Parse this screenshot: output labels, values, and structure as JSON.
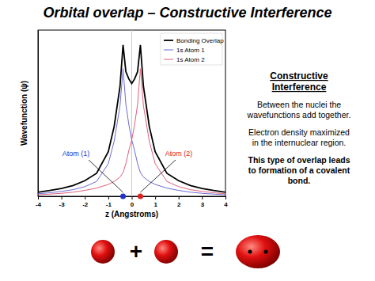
{
  "chart_data": {
    "type": "line",
    "title": "Orbital overlap – Constructive Interference",
    "x_label": "z (Angstroms)",
    "y_label": "Wavefunction (ψ)",
    "x": [
      -4,
      -3.5,
      -3,
      -2.5,
      -2,
      -1.5,
      -1,
      -0.75,
      -0.5,
      -0.37,
      -0.25,
      -0.12,
      0,
      0.12,
      0.25,
      0.37,
      0.5,
      0.75,
      1,
      1.5,
      2,
      2.5,
      3,
      3.5,
      4
    ],
    "series": [
      {
        "name": "Bonding Overlap",
        "color": "#000000",
        "values": [
          0.027,
          0.039,
          0.053,
          0.073,
          0.105,
          0.155,
          0.3,
          0.47,
          0.74,
          1.02,
          0.84,
          0.79,
          0.76,
          0.79,
          0.84,
          1.02,
          0.74,
          0.47,
          0.3,
          0.155,
          0.105,
          0.073,
          0.053,
          0.039,
          0.027
        ]
      },
      {
        "name": "1s Atom 1",
        "color": "#6b6bd6",
        "values": [
          0.017,
          0.024,
          0.033,
          0.045,
          0.065,
          0.1,
          0.22,
          0.37,
          0.61,
          0.86,
          0.62,
          0.48,
          0.38,
          0.31,
          0.22,
          0.16,
          0.13,
          0.1,
          0.08,
          0.055,
          0.04,
          0.028,
          0.02,
          0.015,
          0.01
        ]
      },
      {
        "name": "1s Atom 2",
        "color": "#e0607a",
        "values": [
          0.01,
          0.015,
          0.02,
          0.028,
          0.04,
          0.055,
          0.08,
          0.1,
          0.13,
          0.16,
          0.22,
          0.31,
          0.38,
          0.48,
          0.62,
          0.86,
          0.61,
          0.37,
          0.22,
          0.1,
          0.065,
          0.045,
          0.033,
          0.024,
          0.017
        ]
      }
    ],
    "xlim": [
      -4,
      4
    ],
    "xticks": [
      -4,
      -3,
      -2,
      -1,
      0,
      1,
      2,
      3,
      4
    ],
    "ylim": [
      0,
      1.12
    ],
    "yticks": [],
    "tick_labels": "x",
    "grid": false,
    "vline": 0,
    "legend": "upper right",
    "annotations": [
      {
        "text": "Atom (1)",
        "x": -0.37,
        "color": "#2233cc"
      },
      {
        "text": "Atom (2)",
        "x": 0.37,
        "color": "#dd2222"
      }
    ],
    "side_text": {
      "heading": [
        "Constructive",
        "Interference"
      ],
      "paragraphs": [
        [
          "Between the nuclei the",
          "wavefunctions add together."
        ],
        [
          "Electron density maximized",
          "in the internuclear region."
        ]
      ],
      "conclusion": [
        "This type of overlap leads",
        "to formation of a covalent",
        "bond."
      ]
    },
    "equation": {
      "plus": "+",
      "equals": "="
    }
  }
}
